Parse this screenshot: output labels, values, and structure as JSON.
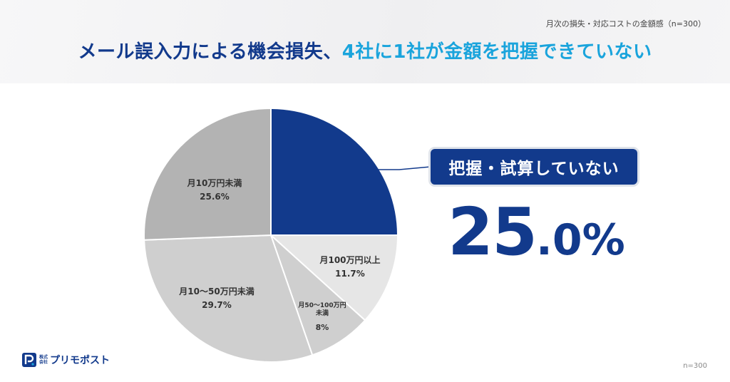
{
  "header": {
    "subtitle": "月次の損失・対応コストの金額感（n=300）",
    "title_part1": "メール誤入力による機会損失、",
    "title_part2": "4社に1社が金額を把握できていない"
  },
  "colors": {
    "highlight": "#123a8c",
    "accent": "#1aa4dc",
    "grey_dark": "#b3b3b3",
    "grey_mid": "#cfcfcf",
    "grey_light": "#e6e6e6",
    "white": "#ffffff"
  },
  "chart_data": {
    "type": "pie",
    "start": "12 o'clock",
    "direction": "clockwise",
    "slices": [
      {
        "label": "把握・試算していない",
        "value": 25.0,
        "color": "#123a8c",
        "display_value": ""
      },
      {
        "label": "月100万円以上",
        "value": 11.7,
        "color": "#e6e6e6",
        "display_value": "11.7%"
      },
      {
        "label": "月50〜100万円未満",
        "value": 8.0,
        "color": "#cfcfcf",
        "display_value": "8%"
      },
      {
        "label": "月10〜50万円未満",
        "value": 29.7,
        "color": "#cfcfcf",
        "display_value": "29.7%"
      },
      {
        "label": "月10万円未満",
        "value": 25.6,
        "color": "#b3b3b3",
        "display_value": "25.6%"
      }
    ]
  },
  "slice_labels": {
    "s100": {
      "name": "月100万円以上",
      "value": "11.7%"
    },
    "s50": {
      "name_line1": "月50〜100万円",
      "name_line2": "未満",
      "value": "8%"
    },
    "s10_50": {
      "name": "月10〜50万円未満",
      "value": "29.7%"
    },
    "s10": {
      "name": "月10万円未満",
      "value": "25.6%"
    }
  },
  "callout": {
    "label": "把握・試算していない",
    "value_int": "25",
    "value_dec": ".0",
    "value_unit": "%"
  },
  "logo": {
    "corp_line1": "株式",
    "corp_line2": "会社",
    "name": "プリモポスト"
  },
  "footnote": "n=300"
}
